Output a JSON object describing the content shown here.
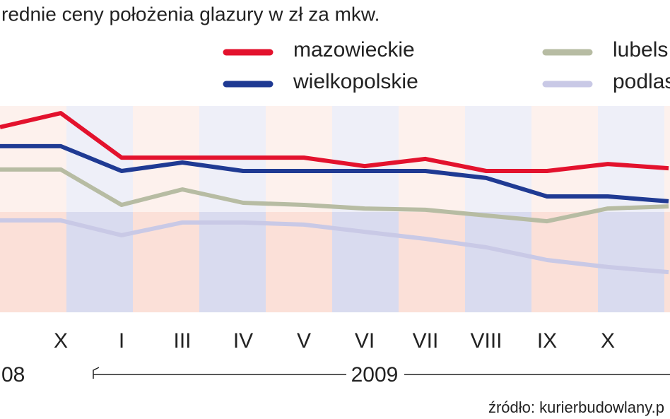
{
  "chart_data": {
    "type": "line",
    "title": "rednie ceny położenia glazury w zł za mkw.",
    "categories": [
      null,
      "X",
      "I",
      "III",
      "IV",
      "V",
      "VI",
      "VII",
      "VIII",
      "IX",
      "X",
      null
    ],
    "series": [
      {
        "name": "mazowieckie",
        "color": "#e3122d",
        "values": [
          86.7,
          93.3,
          72.3,
          72.3,
          72.3,
          72.3,
          68.3,
          71.7,
          66,
          66,
          69.3,
          67.3
        ]
      },
      {
        "name": "wielkopolskie",
        "color": "#1f3a93",
        "values": [
          77.7,
          77.7,
          66,
          70,
          66,
          66,
          66,
          66,
          62.7,
          54,
          54,
          51.7
        ]
      },
      {
        "name": "lubels",
        "color": "#b7bca3",
        "values": [
          66.7,
          66.7,
          50,
          57.3,
          51,
          50,
          48.3,
          47.7,
          45,
          42.3,
          48.3,
          49.3
        ]
      },
      {
        "name": "podlas",
        "color": "#c9c9e6",
        "values": [
          42.7,
          42.7,
          35.7,
          41.7,
          41.7,
          40.7,
          37.3,
          34,
          30,
          24,
          20.7,
          18.3
        ]
      }
    ],
    "ylim": [
      0,
      100
    ],
    "year_labels": [
      "08",
      "2009"
    ],
    "source": "źródło: kurierbudowlany.p"
  }
}
